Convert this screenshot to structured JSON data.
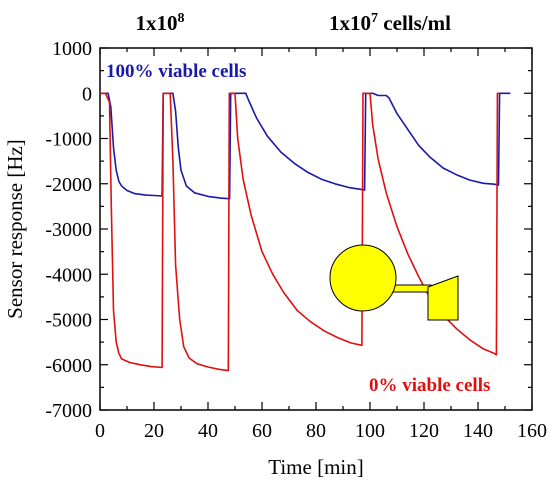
{
  "chart_data": {
    "type": "line",
    "xlabel": "Time [min]",
    "ylabel": "Sensor response [Hz]",
    "xlim": [
      0,
      160
    ],
    "ylim": [
      -7000,
      1000
    ],
    "x_ticks": [
      "0",
      "20",
      "40",
      "60",
      "80",
      "100",
      "120",
      "140",
      "160"
    ],
    "y_ticks": [
      "1000",
      "0",
      "-1000",
      "-2000",
      "-3000",
      "-4000",
      "-5000",
      "-6000",
      "-7000"
    ],
    "headers": [
      {
        "base": "1x10",
        "sup": "8",
        "rest": ""
      },
      {
        "base": "1x10",
        "sup": "7",
        "rest": " cells/ml"
      }
    ],
    "annotations": {
      "viable": "100% viable cells",
      "nonviable": "0% viable cells"
    },
    "colors": {
      "viable": "#1a1aaa",
      "nonviable": "#e01010",
      "icon_fill": "#ffff00"
    },
    "series": [
      {
        "key": "viable",
        "points": [
          [
            0,
            0
          ],
          [
            3,
            0
          ],
          [
            4,
            -300
          ],
          [
            5,
            -1200
          ],
          [
            6,
            -1700
          ],
          [
            7,
            -1950
          ],
          [
            8,
            -2050
          ],
          [
            10,
            -2150
          ],
          [
            13,
            -2220
          ],
          [
            17,
            -2250
          ],
          [
            20,
            -2260
          ],
          [
            23,
            -2270
          ],
          [
            23.4,
            0
          ],
          [
            27,
            0
          ],
          [
            28,
            -400
          ],
          [
            29,
            -1200
          ],
          [
            30,
            -1700
          ],
          [
            32,
            -2050
          ],
          [
            35,
            -2200
          ],
          [
            40,
            -2280
          ],
          [
            45,
            -2320
          ],
          [
            48,
            -2330
          ],
          [
            48.4,
            0
          ],
          [
            54,
            0
          ],
          [
            55,
            -150
          ],
          [
            58,
            -550
          ],
          [
            62,
            -950
          ],
          [
            67,
            -1300
          ],
          [
            72,
            -1550
          ],
          [
            77,
            -1750
          ],
          [
            82,
            -1900
          ],
          [
            87,
            -2000
          ],
          [
            92,
            -2080
          ],
          [
            97,
            -2130
          ],
          [
            98,
            -2140
          ],
          [
            98.4,
            0
          ],
          [
            101,
            0
          ],
          [
            103,
            -50
          ],
          [
            106,
            -50
          ],
          [
            107,
            -100
          ],
          [
            110,
            -450
          ],
          [
            114,
            -800
          ],
          [
            118,
            -1150
          ],
          [
            122,
            -1400
          ],
          [
            127,
            -1650
          ],
          [
            132,
            -1800
          ],
          [
            137,
            -1920
          ],
          [
            142,
            -1990
          ],
          [
            146,
            -2010
          ],
          [
            147.6,
            -2030
          ],
          [
            148,
            0
          ],
          [
            152,
            0
          ]
        ]
      },
      {
        "key": "nonviable",
        "points": [
          [
            0,
            0
          ],
          [
            2,
            0
          ],
          [
            3.5,
            -200
          ],
          [
            4.2,
            -2500
          ],
          [
            5,
            -4800
          ],
          [
            6,
            -5500
          ],
          [
            7,
            -5750
          ],
          [
            8,
            -5870
          ],
          [
            11,
            -5950
          ],
          [
            15,
            -6000
          ],
          [
            19,
            -6040
          ],
          [
            23,
            -6060
          ],
          [
            23.4,
            0
          ],
          [
            26,
            0
          ],
          [
            27,
            -1500
          ],
          [
            28,
            -3800
          ],
          [
            29.5,
            -5000
          ],
          [
            31,
            -5600
          ],
          [
            33,
            -5850
          ],
          [
            36,
            -5980
          ],
          [
            40,
            -6050
          ],
          [
            44,
            -6100
          ],
          [
            47.5,
            -6130
          ],
          [
            47.9,
            0
          ],
          [
            50,
            0
          ],
          [
            51,
            -1000
          ],
          [
            53,
            -1900
          ],
          [
            56,
            -2700
          ],
          [
            60,
            -3500
          ],
          [
            64,
            -4000
          ],
          [
            68,
            -4400
          ],
          [
            73,
            -4800
          ],
          [
            78,
            -5050
          ],
          [
            83,
            -5250
          ],
          [
            88,
            -5400
          ],
          [
            93,
            -5520
          ],
          [
            97,
            -5570
          ],
          [
            97.4,
            0
          ],
          [
            100,
            0
          ],
          [
            101,
            -700
          ],
          [
            103,
            -1450
          ],
          [
            106,
            -2200
          ],
          [
            110,
            -2950
          ],
          [
            114,
            -3550
          ],
          [
            118,
            -4050
          ],
          [
            122,
            -4500
          ],
          [
            127,
            -4900
          ],
          [
            132,
            -5200
          ],
          [
            137,
            -5450
          ],
          [
            142,
            -5650
          ],
          [
            146,
            -5750
          ],
          [
            146.8,
            -5780
          ],
          [
            147.2,
            0
          ],
          [
            148,
            0
          ]
        ]
      }
    ]
  }
}
